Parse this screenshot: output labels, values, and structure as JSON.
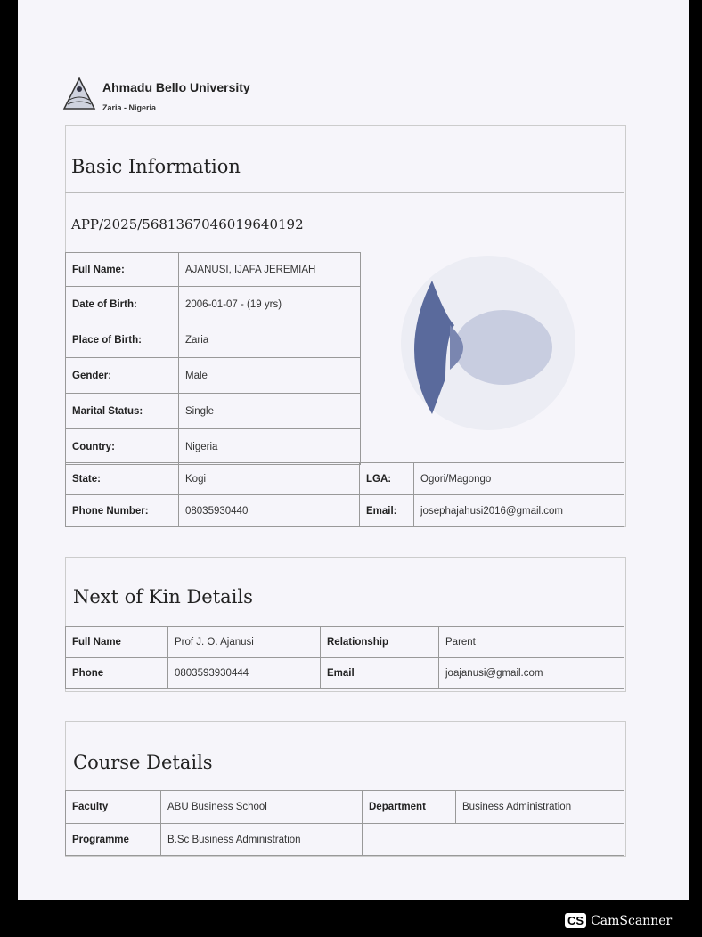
{
  "header": {
    "university": "Ahmadu Bello University",
    "location": "Zaria - Nigeria",
    "logo": "abu-crest-logo"
  },
  "basic": {
    "title": "Basic Information",
    "app_id": "APP/2025/5681367046019640192",
    "rows": [
      {
        "label": "Full Name:",
        "value": "AJANUSI, IJAFA JEREMIAH"
      },
      {
        "label": "Date of Birth:",
        "value": "2006-01-07 - (19 yrs)"
      },
      {
        "label": "Place of Birth:",
        "value": "Zaria"
      },
      {
        "label": "Gender:",
        "value": "Male"
      },
      {
        "label": "Marital Status:",
        "value": "Single"
      },
      {
        "label": "Country:",
        "value": "Nigeria"
      }
    ],
    "state": {
      "label": "State:",
      "value": "Kogi"
    },
    "lga": {
      "label": "LGA:",
      "value": "Ogori/Magongo"
    },
    "phone": {
      "label": "Phone Number:",
      "value": "08035930440"
    },
    "email": {
      "label": "Email:",
      "value": "josephajahusi2016@gmail.com"
    },
    "photo": "profile-placeholder-icon"
  },
  "kin": {
    "title": "Next of Kin Details",
    "full_name": {
      "label": "Full Name",
      "value": "Prof J. O. Ajanusi"
    },
    "relationship": {
      "label": "Relationship",
      "value": "Parent"
    },
    "phone": {
      "label": "Phone",
      "value": "0803593930444"
    },
    "email": {
      "label": "Email",
      "value": "joajanusi@gmail.com"
    }
  },
  "course": {
    "title": "Course Details",
    "faculty": {
      "label": "Faculty",
      "value": "ABU Business School"
    },
    "department": {
      "label": "Department",
      "value": "Business Administration"
    },
    "programme": {
      "label": "Programme",
      "value": "B.Sc Business Administration"
    }
  },
  "watermark": {
    "app": "CamScanner",
    "badge": "CS"
  }
}
